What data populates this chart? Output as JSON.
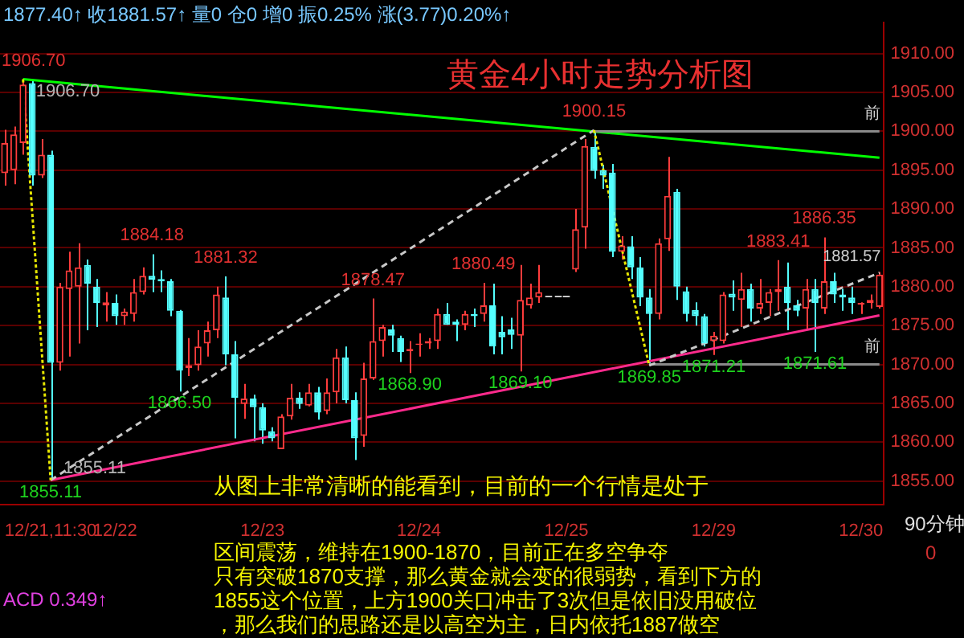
{
  "chart_data": {
    "type": "candlestick",
    "title": "黄金4小时走势分析图",
    "categories": [
      null,
      null,
      null,
      null,
      null,
      "12/21,11:30",
      null,
      null,
      null,
      null,
      null,
      null,
      "12/22",
      null,
      null,
      null,
      null,
      null,
      null,
      null,
      null,
      null,
      null,
      null,
      null,
      null,
      null,
      null,
      "12/23",
      null,
      null,
      null,
      null,
      null,
      null,
      null,
      null,
      null,
      null,
      null,
      null,
      null,
      null,
      null,
      null,
      "12/24",
      null,
      null,
      null,
      null,
      null,
      null,
      null,
      null,
      null,
      null,
      null,
      null,
      null,
      null,
      null,
      "12/25",
      null,
      null,
      null,
      null,
      null,
      null,
      null,
      null,
      null,
      null,
      null,
      null,
      null,
      null,
      null,
      "12/29",
      null,
      null,
      null,
      null,
      null,
      null,
      null,
      null,
      null,
      null,
      null,
      null,
      null,
      null,
      null,
      "12/30",
      null,
      null
    ],
    "ohlc": [
      [
        1894.6,
        1900.2,
        1893,
        1898.5
      ],
      [
        1895,
        1900.6,
        1893.2,
        1899.6
      ],
      [
        1898.5,
        1906.7,
        1897,
        1906
      ],
      [
        1906.2,
        1906.5,
        1893,
        1894.3
      ],
      [
        1894.3,
        1899,
        1894,
        1897
      ],
      [
        1897,
        1897.5,
        1855.11,
        1870.2
      ],
      [
        1870.2,
        1880.5,
        1869.2,
        1880
      ],
      [
        1879.7,
        1884.5,
        1871,
        1882.1
      ],
      [
        1880,
        1885.6,
        1872.7,
        1882.5
      ],
      [
        1882.8,
        1883.5,
        1874.4,
        1880.4
      ],
      [
        1880,
        1881,
        1874.8,
        1877.9
      ],
      [
        1877.6,
        1879.3,
        1875.5,
        1878
      ],
      [
        1877.9,
        1879,
        1875.1,
        1876.2
      ],
      [
        1876.2,
        1877.2,
        1875.1,
        1876.8
      ],
      [
        1876.5,
        1881,
        1875.5,
        1879.3
      ],
      [
        1879.3,
        1882.5,
        1879,
        1881.4
      ],
      [
        1881.4,
        1884.18,
        1879.3,
        1880.9
      ],
      [
        1881,
        1882.1,
        1879.3,
        1880.7
      ],
      [
        1880.7,
        1881,
        1876.2,
        1876.9
      ],
      [
        1876.9,
        1877,
        1866.5,
        1869.2
      ],
      [
        1869.5,
        1873.4,
        1868.5,
        1869.9
      ],
      [
        1869.9,
        1874.4,
        1869.2,
        1872.3
      ],
      [
        1872.7,
        1875.5,
        1871,
        1874.4
      ],
      [
        1874.4,
        1880,
        1873.4,
        1879
      ],
      [
        1878.6,
        1881.32,
        1869.9,
        1871.3
      ],
      [
        1871.3,
        1873,
        1860.5,
        1865.7
      ],
      [
        1864.9,
        1867.5,
        1863,
        1865.6
      ],
      [
        1865.6,
        1866.1,
        1860.1,
        1864.5
      ],
      [
        1864.5,
        1865,
        1859.8,
        1861.5
      ],
      [
        1861.4,
        1861.9,
        1860.1,
        1860.5
      ],
      [
        1859.1,
        1863.6,
        1859.1,
        1863.3
      ],
      [
        1863.3,
        1867.5,
        1862.9,
        1865.7
      ],
      [
        1865.7,
        1866.4,
        1864.3,
        1864.9
      ],
      [
        1864.7,
        1867.5,
        1864.6,
        1866.4
      ],
      [
        1866.4,
        1867.1,
        1862.9,
        1863.8
      ],
      [
        1864,
        1868.2,
        1863.6,
        1866.4
      ],
      [
        1866.4,
        1872,
        1865,
        1870.9
      ],
      [
        1870.9,
        1872.3,
        1865,
        1865.4
      ],
      [
        1865.4,
        1866.4,
        1857.7,
        1860.5
      ],
      [
        1860.8,
        1870.2,
        1859.4,
        1868.2
      ],
      [
        1868.2,
        1878.47,
        1868,
        1873
      ],
      [
        1873,
        1875.1,
        1871,
        1874.8
      ],
      [
        1874.5,
        1875.1,
        1871.6,
        1873.7
      ],
      [
        1873.4,
        1873.7,
        1870.3,
        1871.6
      ],
      [
        1871.7,
        1873,
        1868.9,
        1872
      ],
      [
        1872.5,
        1874,
        1871,
        1872.7
      ],
      [
        1872.7,
        1873.4,
        1872,
        1873
      ],
      [
        1873,
        1877.2,
        1872,
        1876.5
      ],
      [
        1876.5,
        1877.9,
        1875.1,
        1875.1
      ],
      [
        1875.5,
        1875.8,
        1873,
        1875.1
      ],
      [
        1875.1,
        1876.9,
        1874.4,
        1876.5
      ],
      [
        1876.5,
        1877.2,
        1874.8,
        1876.2
      ],
      [
        1876.5,
        1880.49,
        1875.5,
        1877.6
      ],
      [
        1877.6,
        1880.4,
        1871.3,
        1872.3
      ],
      [
        1874.2,
        1876.2,
        1871.3,
        1873.5
      ],
      [
        1874.5,
        1876,
        1872,
        1873.8
      ],
      [
        1873.7,
        1882.8,
        1869.1,
        1878.3
      ],
      [
        1877.6,
        1880.4,
        1877.2,
        1878.6
      ],
      [
        1878.6,
        1882.8,
        1877.9,
        1879.3
      ],
      [
        1878.8,
        1878.8,
        1878.8,
        1878.8
      ],
      [
        1878.8,
        1878.8,
        1878.8,
        1878.8
      ],
      [
        1878.8,
        1878.8,
        1878.8,
        1878.8
      ],
      [
        1882.2,
        1890,
        1881.9,
        1887.4
      ],
      [
        1887.6,
        1899,
        1884.9,
        1898.1
      ],
      [
        1898,
        1900.15,
        1893.9,
        1894.9
      ],
      [
        1895,
        1895.7,
        1892.6,
        1894.3
      ],
      [
        1894.7,
        1895.8,
        1883.8,
        1884.5
      ],
      [
        1884.5,
        1886.5,
        1883.5,
        1885.3
      ],
      [
        1885.2,
        1886.5,
        1881,
        1882.5
      ],
      [
        1882.5,
        1883.8,
        1877.5,
        1878.6
      ],
      [
        1878.6,
        1879.7,
        1869.85,
        1876.5
      ],
      [
        1876.5,
        1886.2,
        1875.8,
        1885.6
      ],
      [
        1886.1,
        1896.7,
        1884.6,
        1891.7
      ],
      [
        1892.2,
        1892.6,
        1878.3,
        1880
      ],
      [
        1879.4,
        1880,
        1875.5,
        1876.5
      ],
      [
        1877,
        1878,
        1875,
        1876.2
      ],
      [
        1876.2,
        1876.5,
        1872.3,
        1872.7
      ],
      [
        1873,
        1874.2,
        1871.21,
        1873.7
      ],
      [
        1873,
        1879.3,
        1872.7,
        1879
      ],
      [
        1879.1,
        1880.8,
        1876.9,
        1878.6
      ],
      [
        1878.3,
        1881.8,
        1874.8,
        1879.7
      ],
      [
        1879.7,
        1880.4,
        1875.5,
        1877.2
      ],
      [
        1877.2,
        1881,
        1876.5,
        1877.9
      ],
      [
        1877.9,
        1879.7,
        1876.2,
        1879.3
      ],
      [
        1879.3,
        1883.41,
        1876.9,
        1879.7
      ],
      [
        1880,
        1883.1,
        1874.4,
        1877.9
      ],
      [
        1877.6,
        1878.3,
        1876.2,
        1876.9
      ],
      [
        1877.2,
        1881,
        1874.4,
        1879.7
      ],
      [
        1879.7,
        1881,
        1871.61,
        1877.9
      ],
      [
        1877.2,
        1886.35,
        1876.5,
        1880.7
      ],
      [
        1880.7,
        1881.8,
        1877.9,
        1879
      ],
      [
        1879,
        1879.7,
        1876.9,
        1878.6
      ],
      [
        1878.6,
        1880,
        1876.5,
        1877.9
      ],
      [
        1877.7,
        1878,
        1876.5,
        1877.9
      ],
      [
        1877.9,
        1879,
        1877.2,
        1878.3
      ],
      [
        1877.4,
        1881.9,
        1877.2,
        1881.57
      ]
    ],
    "colors": [
      "#ff3c3c",
      "#ff3c3c",
      "#ff3c3c",
      "#54ffff",
      "#ff3c3c",
      "#54ffff",
      "#ff3c3c",
      "#ff3c3c",
      "#ff3c3c",
      "#54ffff",
      "#54ffff",
      "#ff3c3c",
      "#54ffff",
      "#ff3c3c",
      "#ff3c3c",
      "#ff3c3c",
      "#54ffff",
      "#54ffff",
      "#54ffff",
      "#54ffff",
      "#ff3c3c",
      "#ff3c3c",
      "#ff3c3c",
      "#ff3c3c",
      "#54ffff",
      "#54ffff",
      "#ff3c3c",
      "#54ffff",
      "#54ffff",
      "#54ffff",
      "#ff3c3c",
      "#ff3c3c",
      "#54ffff",
      "#ff3c3c",
      "#54ffff",
      "#ff3c3c",
      "#ff3c3c",
      "#54ffff",
      "#54ffff",
      "#ff3c3c",
      "#ff3c3c",
      "#ff3c3c",
      "#54ffff",
      "#54ffff",
      "#ff3c3c",
      "#ff3c3c",
      "#ff3c3c",
      "#ff3c3c",
      "#54ffff",
      "#54ffff",
      "#ff3c3c",
      "#54ffff",
      "#ff3c3c",
      "#54ffff",
      "#54ffff",
      "#54ffff",
      "#ff3c3c",
      "#ff3c3c",
      "#ff3c3c",
      "#c8c8c8",
      "#c8c8c8",
      "#c8c8c8",
      "#ff3c3c",
      "#ff3c3c",
      "#54ffff",
      "#54ffff",
      "#54ffff",
      "#ff3c3c",
      "#54ffff",
      "#54ffff",
      "#54ffff",
      "#ff3c3c",
      "#ff3c3c",
      "#54ffff",
      "#54ffff",
      "#54ffff",
      "#54ffff",
      "#ff3c3c",
      "#ff3c3c",
      "#54ffff",
      "#ff3c3c",
      "#54ffff",
      "#ff3c3c",
      "#ff3c3c",
      "#ff3c3c",
      "#54ffff",
      "#54ffff",
      "#ff3c3c",
      "#54ffff",
      "#ff3c3c",
      "#54ffff",
      "#54ffff",
      "#54ffff",
      "#ff3c3c",
      "#ff3c3c",
      "#ff3c3c"
    ],
    "series": [
      {
        "type": "line",
        "color": "#00ff00",
        "line_style": "solid",
        "values": [
          null,
          null,
          1906.7,
          null,
          null,
          null,
          null,
          null,
          null,
          null,
          null,
          null,
          null,
          null,
          null,
          null,
          null,
          null,
          null,
          null,
          null,
          null,
          null,
          null,
          null,
          null,
          null,
          null,
          null,
          null,
          null,
          null,
          null,
          null,
          null,
          null,
          null,
          null,
          null,
          null,
          null,
          null,
          null,
          null,
          null,
          null,
          null,
          null,
          null,
          null,
          null,
          null,
          null,
          null,
          null,
          null,
          null,
          null,
          null,
          null,
          null,
          null,
          null,
          null,
          null,
          null,
          null,
          null,
          null,
          null,
          null,
          null,
          null,
          null,
          null,
          null,
          null,
          null,
          null,
          null,
          null,
          null,
          null,
          null,
          null,
          null,
          null,
          null,
          null,
          null,
          null,
          null,
          null,
          null,
          null,
          1896.6
        ]
      },
      {
        "type": "line",
        "color": "#ff2a8c",
        "line_style": "solid",
        "values": [
          null,
          null,
          null,
          null,
          null,
          1855.11,
          null,
          null,
          null,
          null,
          null,
          null,
          null,
          null,
          null,
          null,
          null,
          null,
          null,
          null,
          null,
          null,
          null,
          null,
          null,
          null,
          null,
          null,
          null,
          null,
          null,
          null,
          null,
          null,
          null,
          null,
          null,
          null,
          null,
          null,
          null,
          null,
          null,
          null,
          null,
          null,
          null,
          null,
          null,
          null,
          null,
          null,
          null,
          null,
          null,
          null,
          null,
          null,
          null,
          null,
          null,
          null,
          null,
          null,
          null,
          null,
          null,
          null,
          null,
          null,
          null,
          null,
          null,
          null,
          null,
          null,
          null,
          null,
          null,
          null,
          null,
          null,
          null,
          null,
          null,
          null,
          null,
          null,
          null,
          null,
          null,
          null,
          null,
          null,
          null,
          1876.3
        ]
      },
      {
        "type": "line",
        "color": "#8a8a8a",
        "line_style": "solid",
        "values": [
          null,
          null,
          null,
          null,
          null,
          null,
          null,
          null,
          null,
          null,
          null,
          null,
          null,
          null,
          null,
          null,
          null,
          null,
          null,
          null,
          null,
          null,
          null,
          null,
          null,
          null,
          null,
          null,
          null,
          null,
          null,
          null,
          null,
          null,
          null,
          null,
          null,
          null,
          null,
          null,
          null,
          null,
          null,
          null,
          null,
          null,
          null,
          null,
          null,
          null,
          null,
          null,
          null,
          null,
          null,
          null,
          null,
          null,
          null,
          null,
          null,
          null,
          null,
          null,
          1900,
          null,
          null,
          null,
          null,
          null,
          null,
          null,
          null,
          null,
          null,
          null,
          null,
          null,
          null,
          null,
          null,
          null,
          null,
          null,
          null,
          null,
          null,
          null,
          null,
          null,
          null,
          null,
          null,
          null,
          null,
          1900
        ]
      },
      {
        "type": "line",
        "color": "#8a8a8a",
        "line_style": "solid",
        "values": [
          null,
          null,
          null,
          null,
          null,
          null,
          null,
          null,
          null,
          null,
          null,
          null,
          null,
          null,
          null,
          null,
          null,
          null,
          null,
          null,
          null,
          null,
          null,
          null,
          null,
          null,
          null,
          null,
          null,
          null,
          null,
          null,
          null,
          null,
          null,
          null,
          null,
          null,
          null,
          null,
          null,
          null,
          null,
          null,
          null,
          null,
          null,
          null,
          null,
          null,
          null,
          null,
          null,
          null,
          null,
          null,
          null,
          null,
          null,
          null,
          null,
          null,
          null,
          null,
          null,
          null,
          null,
          null,
          null,
          null,
          1870,
          null,
          null,
          null,
          null,
          null,
          null,
          null,
          null,
          null,
          null,
          null,
          null,
          null,
          null,
          null,
          null,
          null,
          null,
          null,
          null,
          null,
          null,
          null,
          null,
          1870
        ]
      },
      {
        "type": "line",
        "color": "#c8c8c8",
        "line_style": "dashed",
        "values": [
          null,
          null,
          null,
          null,
          null,
          1855.11,
          null,
          null,
          null,
          null,
          null,
          null,
          null,
          null,
          null,
          null,
          null,
          null,
          null,
          null,
          null,
          null,
          null,
          null,
          null,
          null,
          null,
          null,
          null,
          null,
          null,
          null,
          null,
          null,
          null,
          null,
          null,
          null,
          null,
          null,
          null,
          null,
          null,
          null,
          null,
          null,
          null,
          null,
          null,
          null,
          null,
          null,
          null,
          null,
          null,
          null,
          null,
          null,
          null,
          null,
          null,
          null,
          null,
          null,
          1900.15,
          null,
          null,
          null,
          null,
          null,
          null,
          null,
          null,
          null,
          null,
          null,
          null,
          null,
          null,
          null,
          null,
          null,
          null,
          null,
          null,
          null,
          null,
          null,
          null,
          null,
          null,
          null,
          null,
          null,
          null,
          null
        ]
      },
      {
        "type": "line",
        "color": "#c8c8c8",
        "line_style": "dashed",
        "values": [
          null,
          null,
          null,
          null,
          null,
          null,
          null,
          null,
          null,
          null,
          null,
          null,
          null,
          null,
          null,
          null,
          null,
          null,
          null,
          null,
          null,
          null,
          null,
          null,
          null,
          null,
          null,
          null,
          null,
          null,
          null,
          null,
          null,
          null,
          null,
          null,
          null,
          null,
          null,
          null,
          null,
          null,
          null,
          null,
          null,
          null,
          null,
          null,
          null,
          null,
          null,
          null,
          null,
          null,
          null,
          null,
          null,
          null,
          null,
          null,
          null,
          null,
          null,
          null,
          null,
          null,
          null,
          null,
          null,
          null,
          1869.85,
          null,
          null,
          null,
          null,
          null,
          null,
          null,
          null,
          null,
          null,
          null,
          null,
          null,
          null,
          null,
          null,
          null,
          null,
          null,
          null,
          null,
          null,
          null,
          null,
          1881.8
        ]
      },
      {
        "type": "line",
        "color": "#e6e600",
        "line_style": "dotted",
        "values": [
          null,
          null,
          1906.7,
          null,
          null,
          1855.11,
          null,
          null,
          null,
          null,
          null,
          null,
          null,
          null,
          null,
          null,
          null,
          null,
          null,
          null,
          null,
          null,
          null,
          null,
          null,
          null,
          null,
          null,
          null,
          null,
          null,
          null,
          null,
          null,
          null,
          null,
          null,
          null,
          null,
          null,
          null,
          null,
          null,
          null,
          null,
          null,
          null,
          null,
          null,
          null,
          null,
          null,
          null,
          null,
          null,
          null,
          null,
          null,
          null,
          null,
          null,
          null,
          null,
          null,
          null,
          null,
          null,
          null,
          null,
          null,
          null,
          null,
          null,
          null,
          null,
          null,
          null,
          null,
          null,
          null,
          null,
          null,
          null,
          null,
          null,
          null,
          null,
          null,
          null,
          null,
          null,
          null,
          null,
          null,
          null,
          null
        ]
      },
      {
        "type": "line",
        "color": "#e6e600",
        "line_style": "dotted",
        "values": [
          null,
          null,
          null,
          null,
          null,
          null,
          null,
          null,
          null,
          null,
          null,
          null,
          null,
          null,
          null,
          null,
          null,
          null,
          null,
          null,
          null,
          null,
          null,
          null,
          null,
          null,
          null,
          null,
          null,
          null,
          null,
          null,
          null,
          null,
          null,
          null,
          null,
          null,
          null,
          null,
          null,
          null,
          null,
          null,
          null,
          null,
          null,
          null,
          null,
          null,
          null,
          null,
          null,
          null,
          null,
          null,
          null,
          null,
          null,
          null,
          null,
          null,
          null,
          null,
          1900.15,
          null,
          null,
          null,
          null,
          null,
          1869.85,
          null,
          null,
          null,
          null,
          null,
          null,
          null,
          null,
          null,
          null,
          null,
          null,
          null,
          null,
          null,
          null,
          null,
          null,
          null,
          null,
          null,
          null,
          null,
          null,
          null
        ]
      }
    ],
    "ylim": [
      1852,
      1914
    ],
    "yticks": [
      {
        "value": 1855,
        "label": "1855.00"
      },
      {
        "value": 1860,
        "label": "1860.00"
      },
      {
        "value": 1865,
        "label": "1865.00"
      },
      {
        "value": 1870,
        "label": "1870.00"
      },
      {
        "value": 1875,
        "label": "1875.00"
      },
      {
        "value": 1880,
        "label": "1880.00"
      },
      {
        "value": 1885,
        "label": "1885.00"
      },
      {
        "value": 1890,
        "label": "1890.00"
      },
      {
        "value": 1895,
        "label": "1895.00"
      },
      {
        "value": 1900,
        "label": "1900.00"
      },
      {
        "value": 1905,
        "label": "1905.00"
      },
      {
        "value": 1910,
        "label": "1910.00"
      }
    ],
    "grid": "y",
    "legend": false,
    "marker": "none",
    "annotations": [
      "1877.40↑ 收1881.57↑ 量0 仓0 增0 振0.25% 涨(3.77)0.20%↑",
      "从图上非常清晰的能看到，目前的一个行情是处于",
      "区间震荡，维持在1900-1870，目前正在多空争夺",
      "只有突破1870支撑，那么黄金就会变的很弱势，看到下方的",
      "1855这个位置，上方1900关口冲击了3次但是依旧没用破位",
      "，那么我们的思路还是以高空为主，日内依托1887做空",
      "ACD 0.349↑",
      "90分钟",
      "0",
      {
        "text": "1906.70",
        "y": 1906.7
      },
      {
        "text": "1906.70",
        "y": 1906.7
      },
      {
        "text": "1855.11",
        "y": 1855.11
      },
      {
        "text": "1855.11",
        "y": 1855.11
      },
      {
        "text": "1884.18",
        "y": 1884.18
      },
      {
        "text": "1881.32",
        "y": 1881.32
      },
      {
        "text": "1878.47",
        "y": 1878.47
      },
      {
        "text": "1880.49",
        "y": 1880.49
      },
      {
        "text": "1900.15",
        "y": 1900.15
      },
      {
        "text": "1883.41",
        "y": 1883.41
      },
      {
        "text": "1886.35",
        "y": 1886.35
      },
      {
        "text": "1866.50",
        "y": 1866.5
      },
      {
        "text": "1868.90",
        "y": 1868.9
      },
      {
        "text": "1869.10",
        "y": 1869.1
      },
      {
        "text": "1869.85",
        "y": 1869.85
      },
      {
        "text": "1871.21",
        "y": 1871.21
      },
      {
        "text": "1871.61",
        "y": 1871.61
      },
      {
        "text": "前",
        "y": 1900
      },
      {
        "text": "前",
        "y": 1870
      },
      {
        "text": "1881.57",
        "y": 1881.57
      }
    ]
  }
}
